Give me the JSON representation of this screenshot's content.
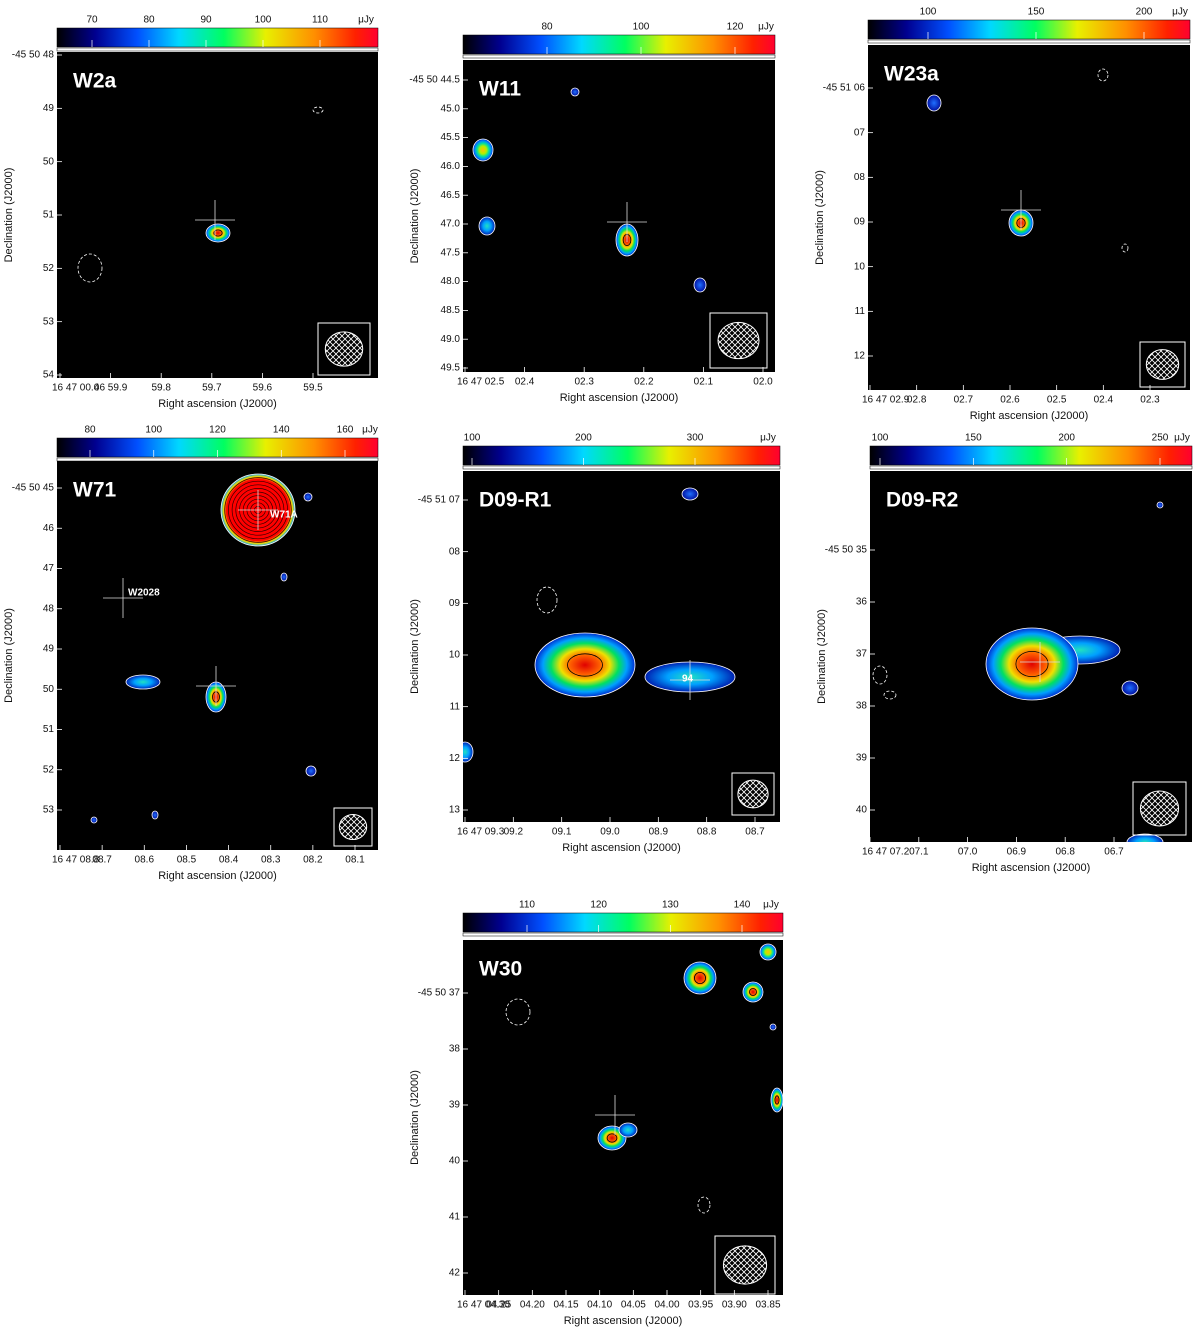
{
  "panels": [
    {
      "label": "W2a",
      "colorbar": {
        "ticks": [
          "70",
          "80",
          "90",
          "100",
          "110"
        ],
        "unit": "μJy"
      },
      "ra_ticks": [
        "16 47 00.0",
        "46 59.9",
        "59.8",
        "59.7",
        "59.6",
        "59.5"
      ],
      "dec_ticks": [
        "-45 50 48",
        "49",
        "50",
        "51",
        "52",
        "53",
        "54"
      ],
      "x_label": "Right ascension (J2000)",
      "y_label": "Declination (J2000)",
      "annotations": []
    },
    {
      "label": "W11",
      "colorbar": {
        "ticks": [
          "80",
          "100",
          "120"
        ],
        "unit": "μJy"
      },
      "ra_ticks": [
        "16 47 02.5",
        "02.4",
        "02.3",
        "02.2",
        "02.1",
        "02.0"
      ],
      "dec_ticks": [
        "-45 50 44.5",
        "45.0",
        "45.5",
        "46.0",
        "46.5",
        "47.0",
        "47.5",
        "48.0",
        "48.5",
        "49.0",
        "49.5"
      ],
      "x_label": "Right ascension (J2000)",
      "y_label": "Declination (J2000)",
      "annotations": []
    },
    {
      "label": "W23a",
      "colorbar": {
        "ticks": [
          "100",
          "150",
          "200"
        ],
        "unit": "μJy"
      },
      "ra_ticks": [
        "16 47 02.9",
        "02.8",
        "02.7",
        "02.6",
        "02.5",
        "02.4",
        "02.3"
      ],
      "dec_ticks": [
        "-45 51 06",
        "07",
        "08",
        "09",
        "10",
        "11",
        "12"
      ],
      "x_label": "Right ascension (J2000)",
      "y_label": "Declination (J2000)",
      "annotations": []
    },
    {
      "label": "W71",
      "colorbar": {
        "ticks": [
          "80",
          "100",
          "120",
          "140",
          "160"
        ],
        "unit": "μJy"
      },
      "ra_ticks": [
        "16 47 08.8",
        "08.7",
        "08.6",
        "08.5",
        "08.4",
        "08.3",
        "08.2",
        "08.1"
      ],
      "dec_ticks": [
        "-45 50 45",
        "46",
        "47",
        "48",
        "49",
        "50",
        "51",
        "52",
        "53"
      ],
      "x_label": "Right ascension (J2000)",
      "y_label": "Declination (J2000)",
      "annotations": [
        "W71A",
        "W2028"
      ]
    },
    {
      "label": "D09-R1",
      "colorbar": {
        "ticks": [
          "100",
          "200",
          "300"
        ],
        "unit": "μJy"
      },
      "ra_ticks": [
        "16 47 09.3",
        "09.2",
        "09.1",
        "09.0",
        "08.9",
        "08.8",
        "08.7"
      ],
      "dec_ticks": [
        "-45 51 07",
        "08",
        "09",
        "10",
        "11",
        "12",
        "13"
      ],
      "x_label": "Right ascension (J2000)",
      "y_label": "Declination (J2000)",
      "annotations": [
        "94"
      ]
    },
    {
      "label": "D09-R2",
      "colorbar": {
        "ticks": [
          "100",
          "150",
          "200",
          "250"
        ],
        "unit": "μJy"
      },
      "ra_ticks": [
        "16 47 07.2",
        "07.1",
        "07.0",
        "06.9",
        "06.8",
        "06.7"
      ],
      "dec_ticks": [
        "-45 50 35",
        "36",
        "37",
        "38",
        "39",
        "40"
      ],
      "x_label": "Right ascension (J2000)",
      "y_label": "Declination (J2000)",
      "annotations": []
    },
    {
      "label": "W30",
      "colorbar": {
        "ticks": [
          "110",
          "120",
          "130",
          "140"
        ],
        "unit": "μJy"
      },
      "ra_ticks": [
        "16 47 04.30",
        "04.25",
        "04.20",
        "04.15",
        "04.10",
        "04.05",
        "04.00",
        "03.95",
        "03.90",
        "03.85"
      ],
      "dec_ticks": [
        "-45 50 37",
        "38",
        "39",
        "40",
        "41",
        "42"
      ],
      "x_label": "Right ascension (J2000)",
      "y_label": "Declination (J2000)",
      "annotations": []
    }
  ]
}
